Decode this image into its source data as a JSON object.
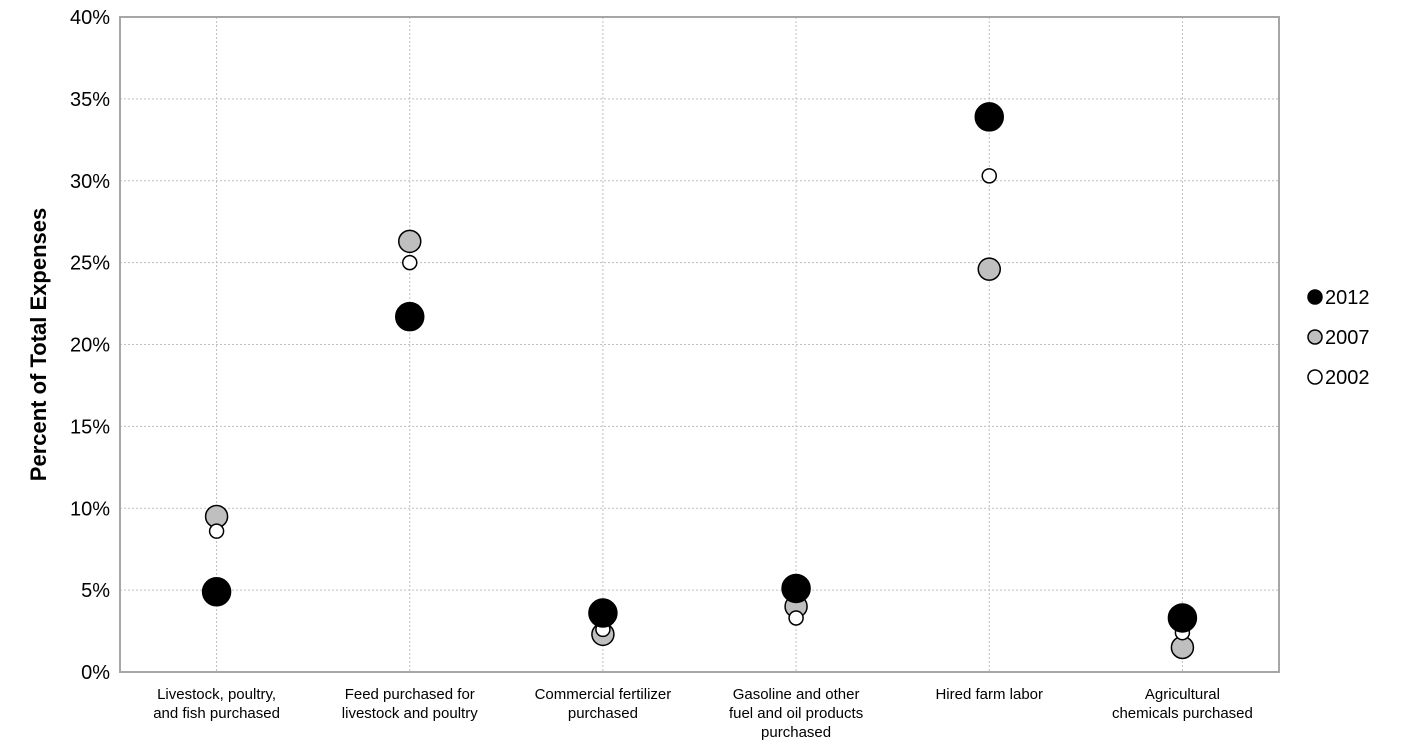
{
  "chart_data": {
    "type": "scatter",
    "title": "",
    "xlabel": "",
    "ylabel": "Percent of Total Expenses",
    "ylim": [
      0,
      40
    ],
    "yticks": [
      0,
      5,
      10,
      15,
      20,
      25,
      30,
      35,
      40
    ],
    "ytick_format": "%",
    "grid": true,
    "legend_position": "right",
    "categories": [
      [
        "Livestock, poultry,",
        "and fish purchased"
      ],
      [
        "Feed purchased for",
        "livestock and poultry"
      ],
      [
        "Commercial fertilizer",
        "purchased"
      ],
      [
        "Gasoline and other",
        "fuel and oil products",
        "purchased"
      ],
      [
        "Hired farm labor"
      ],
      [
        "Agricultural",
        "chemicals purchased"
      ]
    ],
    "series": [
      {
        "name": "2012",
        "fill": "#000000",
        "stroke": "#000000",
        "values": [
          4.9,
          21.7,
          3.6,
          5.1,
          33.9,
          3.3
        ]
      },
      {
        "name": "2007",
        "fill": "#bfbfbf",
        "stroke": "#000000",
        "values": [
          9.5,
          26.3,
          2.3,
          4.0,
          24.6,
          1.5
        ]
      },
      {
        "name": "2002",
        "fill": "#ffffff",
        "stroke": "#000000",
        "values": [
          8.6,
          25.0,
          2.6,
          3.3,
          30.3,
          2.4
        ]
      }
    ]
  }
}
